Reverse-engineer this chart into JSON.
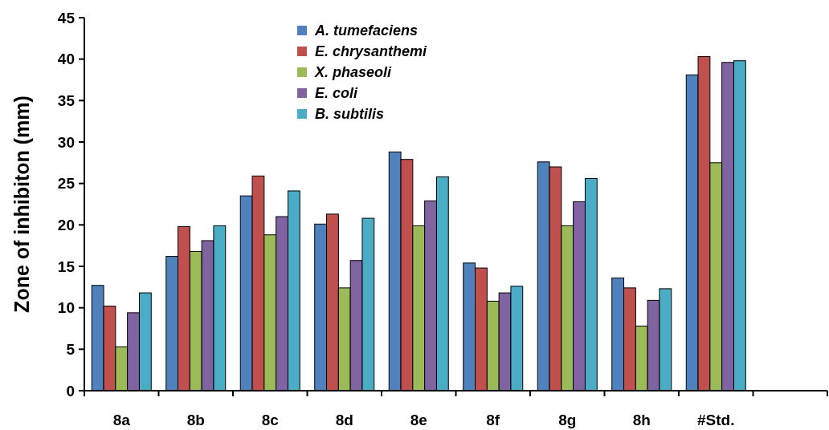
{
  "chart_data": {
    "type": "bar",
    "ylabel": "Zone of inhibiton (mm)",
    "categories": [
      "8a",
      "8b",
      "8c",
      "8d",
      "8e",
      "8f",
      "8g",
      "8h",
      "#Std.",
      null
    ],
    "series": [
      {
        "name": "A. tumefaciens",
        "color": "#4f81bd",
        "values": [
          12.7,
          16.2,
          23.5,
          20.1,
          28.8,
          15.4,
          27.6,
          13.6,
          38.1,
          null
        ]
      },
      {
        "name": "E. chrysanthemi",
        "color": "#c0504d",
        "values": [
          10.2,
          19.8,
          25.9,
          21.3,
          27.9,
          14.8,
          27.0,
          12.4,
          40.3,
          null
        ]
      },
      {
        "name": "X. phaseoli",
        "color": "#9bbb59",
        "values": [
          5.3,
          16.8,
          18.8,
          12.4,
          19.9,
          10.8,
          19.9,
          7.8,
          27.5,
          null
        ]
      },
      {
        "name": "E. coli",
        "color": "#8064a2",
        "values": [
          9.4,
          18.1,
          21.0,
          15.7,
          22.9,
          11.8,
          22.8,
          10.9,
          39.6,
          null
        ]
      },
      {
        "name": "B. subtilis",
        "color": "#4bacc6",
        "values": [
          11.8,
          19.9,
          24.1,
          20.8,
          25.8,
          12.6,
          25.6,
          12.3,
          39.8,
          null
        ]
      }
    ],
    "ylim": [
      0,
      45
    ],
    "yticks": [
      0,
      5,
      10,
      15,
      20,
      25,
      30,
      35,
      40,
      45
    ],
    "grid": false,
    "legend": "top"
  }
}
